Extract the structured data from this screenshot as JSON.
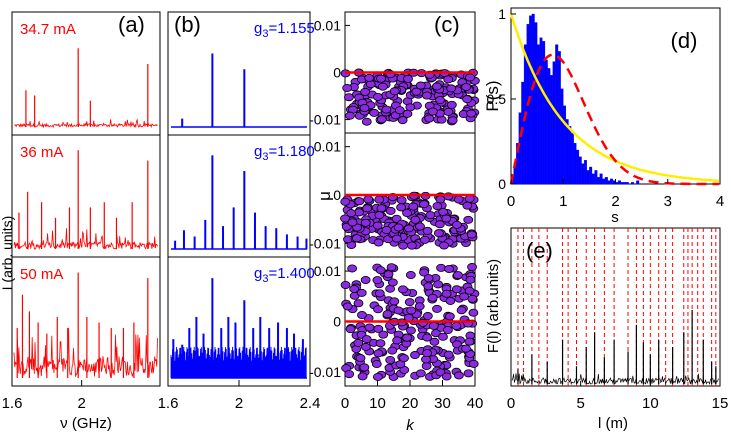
{
  "colors": {
    "red": "#ff0000",
    "blue": "#0000ff",
    "purple": "#8a2be2",
    "yellow": "#ffee00",
    "dash_red": "#ff0000",
    "black": "#000000"
  },
  "chart_data": [
    {
      "panel": "a",
      "type": "line",
      "label": "(a)",
      "ylabel": "I (arb. units)",
      "xlabel": "ν (GHz)",
      "xlim": [
        1.6,
        2.45
      ],
      "xticks": [
        "1.6",
        "2"
      ],
      "subplots": [
        {
          "annotation": "34.7 mA",
          "peaks": [
            [
              1.68,
              0.35
            ],
            [
              1.73,
              0.3
            ],
            [
              1.98,
              0.75
            ],
            [
              2.05,
              0.25
            ],
            [
              2.38,
              0.6
            ]
          ],
          "noise": 0.06
        },
        {
          "annotation": "36 mA",
          "peaks": [
            [
              1.64,
              0.35
            ],
            [
              1.69,
              0.55
            ],
            [
              1.77,
              0.45
            ],
            [
              1.85,
              0.3
            ],
            [
              1.93,
              0.4
            ],
            [
              1.98,
              0.95
            ],
            [
              2.05,
              0.4
            ],
            [
              2.13,
              0.45
            ],
            [
              2.2,
              0.3
            ],
            [
              2.29,
              0.45
            ],
            [
              2.38,
              0.85
            ]
          ],
          "noise": 0.14
        },
        {
          "annotation": "50 mA",
          "peaks": [
            [
              1.63,
              0.45
            ],
            [
              1.66,
              0.75
            ],
            [
              1.7,
              0.6
            ],
            [
              1.75,
              0.5
            ],
            [
              1.8,
              0.4
            ],
            [
              1.86,
              0.55
            ],
            [
              1.92,
              0.45
            ],
            [
              1.98,
              0.95
            ],
            [
              2.03,
              0.55
            ],
            [
              2.1,
              0.5
            ],
            [
              2.17,
              0.45
            ],
            [
              2.24,
              0.45
            ],
            [
              2.3,
              0.5
            ],
            [
              2.38,
              0.9
            ]
          ],
          "noise": 0.3
        }
      ]
    },
    {
      "panel": "b",
      "type": "bar",
      "label": "(b)",
      "xlabel": "",
      "xlim": [
        1.6,
        2.4
      ],
      "xticks": [
        "2",
        "2.4"
      ],
      "subplots": [
        {
          "annotation": "g",
          "annotation_sub": "3",
          "annotation_val": "=1.155",
          "bars": [
            [
              1.68,
              0.08
            ],
            [
              1.85,
              0.7
            ],
            [
              2.03,
              0.55
            ]
          ],
          "base": 0
        },
        {
          "annotation": "g",
          "annotation_sub": "3",
          "annotation_val": "=1.180",
          "bars": [
            [
              1.64,
              0.08
            ],
            [
              1.69,
              0.18
            ],
            [
              1.75,
              0.12
            ],
            [
              1.81,
              0.28
            ],
            [
              1.85,
              0.9
            ],
            [
              1.91,
              0.22
            ],
            [
              1.97,
              0.4
            ],
            [
              2.03,
              0.75
            ],
            [
              2.09,
              0.35
            ],
            [
              2.15,
              0.22
            ],
            [
              2.21,
              0.2
            ],
            [
              2.27,
              0.14
            ],
            [
              2.33,
              0.12
            ],
            [
              2.38,
              0.1
            ]
          ],
          "base": 0
        },
        {
          "annotation": "g",
          "annotation_sub": "3",
          "annotation_val": "=1.400",
          "bars": [
            [
              1.63,
              0.35
            ],
            [
              1.68,
              0.3
            ],
            [
              1.72,
              0.45
            ],
            [
              1.76,
              0.55
            ],
            [
              1.8,
              0.4
            ],
            [
              1.85,
              0.9
            ],
            [
              1.9,
              0.45
            ],
            [
              1.94,
              0.55
            ],
            [
              1.98,
              0.5
            ],
            [
              2.03,
              0.7
            ],
            [
              2.08,
              0.45
            ],
            [
              2.12,
              0.55
            ],
            [
              2.17,
              0.45
            ],
            [
              2.22,
              0.5
            ],
            [
              2.27,
              0.45
            ],
            [
              2.31,
              0.4
            ],
            [
              2.36,
              0.35
            ]
          ],
          "base": 0.28
        }
      ]
    },
    {
      "panel": "c",
      "type": "scatter",
      "label": "(c)",
      "ylabel": "μ",
      "xlabel": "k",
      "xlim": [
        0,
        40
      ],
      "ylim": [
        -0.012,
        0.012
      ],
      "xticks": [
        "0",
        "10",
        "20",
        "30",
        "40"
      ],
      "yticks": [
        "0.01",
        "0",
        "-0.01"
      ],
      "subplots": [
        {
          "mode": "below",
          "n": 200
        },
        {
          "mode": "below",
          "n": 200
        },
        {
          "mode": "both",
          "n": 240
        }
      ]
    },
    {
      "panel": "d",
      "type": "bar",
      "label": "(d)",
      "ylabel": "P(s)",
      "xlabel": "s",
      "xlim": [
        0,
        4
      ],
      "ylim": [
        0,
        1
      ],
      "xticks": [
        "0",
        "1",
        "2",
        "3",
        "4"
      ],
      "yticks": [
        "0",
        "0.5",
        "1"
      ],
      "histogram": [
        0.04,
        0.12,
        0.24,
        0.42,
        0.6,
        0.82,
        0.94,
        0.99,
        1.0,
        0.95,
        0.82,
        0.86,
        0.84,
        0.73,
        0.68,
        0.64,
        0.72,
        0.82,
        0.78,
        0.56,
        0.46,
        0.38,
        0.34,
        0.3,
        0.24,
        0.2,
        0.16,
        0.12,
        0.14,
        0.08,
        0.1,
        0.06,
        0.08,
        0.04,
        0.06,
        0.03,
        0.04,
        0.02,
        0.03,
        0.02,
        0.01,
        0.02,
        0.01,
        0.01,
        0.01,
        0.0,
        0.01,
        0.0,
        0.02,
        0.0,
        0.0,
        0.0,
        0.0,
        0.0,
        0.0,
        0.0
      ],
      "hist_bin_width": 0.05,
      "curves": [
        "exp(-s)",
        "wigner"
      ]
    },
    {
      "panel": "e",
      "type": "line",
      "label": "(e)",
      "ylabel": "F(l) (arb.units)",
      "xlabel": "l (m)",
      "xlim": [
        0,
        15
      ],
      "xticks": [
        "0",
        "5",
        "10",
        "15"
      ],
      "dashed_lines": [
        0.5,
        0.9,
        1.5,
        2.0,
        2.6,
        3.7,
        4.1,
        4.7,
        5.4,
        6.0,
        6.7,
        7.4,
        8.4,
        9.0,
        9.5,
        10.0,
        10.6,
        11.1,
        11.6,
        12.4,
        12.7,
        13.0,
        13.4,
        13.8,
        14.4,
        14.7
      ],
      "peaks": [
        [
          0.5,
          0.1
        ],
        [
          1.5,
          0.2
        ],
        [
          2.6,
          0.15
        ],
        [
          3.7,
          0.3
        ],
        [
          4.7,
          0.12
        ],
        [
          5.4,
          0.25
        ],
        [
          6.0,
          0.35
        ],
        [
          6.7,
          0.18
        ],
        [
          7.4,
          0.3
        ],
        [
          8.4,
          0.22
        ],
        [
          9.0,
          0.4
        ],
        [
          9.5,
          0.28
        ],
        [
          10.0,
          0.2
        ],
        [
          10.6,
          0.3
        ],
        [
          11.6,
          0.25
        ],
        [
          12.4,
          0.35
        ],
        [
          13.0,
          0.5
        ],
        [
          13.8,
          0.3
        ],
        [
          14.4,
          0.15
        ],
        [
          14.7,
          0.12
        ]
      ]
    }
  ],
  "labels": {
    "a_label": "(a)",
    "b_label": "(b)",
    "c_label": "(c)",
    "d_label": "(d)",
    "e_label": "(e)",
    "a_ylabel": "I (arb. units)",
    "a_xlabel": "ν (GHz)",
    "c_ylabel": "μ",
    "c_xlabel": "k",
    "d_ylabel": "P(s)",
    "d_xlabel": "s",
    "e_ylabel": "F(l) (arb.units)",
    "e_xlabel": "l (m)"
  }
}
